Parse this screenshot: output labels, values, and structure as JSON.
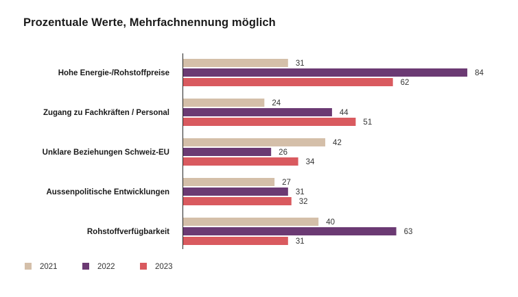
{
  "chart_data": {
    "type": "bar",
    "orientation": "horizontal",
    "title": "Prozentuale Werte, Mehrfachnennung möglich",
    "categories": [
      "Hohe Energie-/Rohstoffpreise",
      "Zugang zu Fachkräften / Personal",
      "Unklare Beziehungen Schweiz-EU",
      "Aussenpolitische Entwicklungen",
      "Rohstoffverfügbarkeit"
    ],
    "series": [
      {
        "name": "2021",
        "color": "#d4bfa9",
        "values": [
          31,
          24,
          42,
          27,
          40
        ]
      },
      {
        "name": "2022",
        "color": "#6b3a73",
        "values": [
          84,
          44,
          26,
          31,
          63
        ]
      },
      {
        "name": "2023",
        "color": "#d95a5f",
        "values": [
          62,
          51,
          34,
          32,
          31
        ]
      }
    ],
    "xlim": [
      0,
      100
    ],
    "grid": false,
    "legend_position": "bottom-left"
  }
}
